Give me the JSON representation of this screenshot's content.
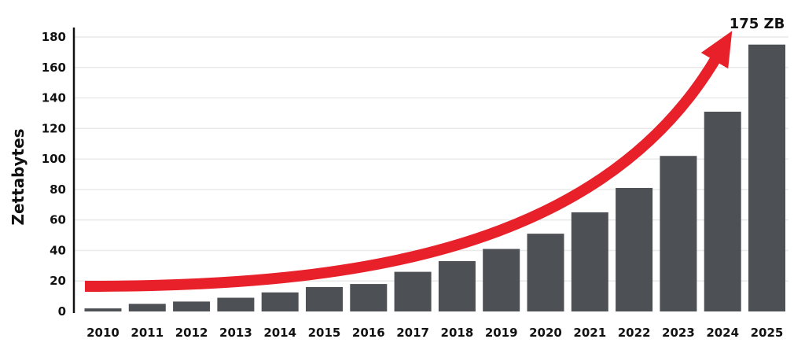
{
  "chart_data": {
    "type": "bar",
    "categories": [
      "2010",
      "2011",
      "2012",
      "2013",
      "2014",
      "2015",
      "2016",
      "2017",
      "2018",
      "2019",
      "2020",
      "2021",
      "2022",
      "2023",
      "2024",
      "2025"
    ],
    "values": [
      2,
      5,
      6.5,
      9,
      12.5,
      16,
      18,
      26,
      33,
      41,
      51,
      65,
      81,
      102,
      131,
      175
    ],
    "title": "",
    "xlabel": "",
    "ylabel": "Zettabytes",
    "ylim": [
      0,
      180
    ],
    "yticks": [
      0,
      20,
      40,
      60,
      80,
      100,
      120,
      140,
      160,
      180
    ],
    "grid": true,
    "annotation": "175 ZB",
    "trend_arrow": true,
    "colors": {
      "bar": "#4d5054",
      "arrow": "#e8202a",
      "grid": "#e9e9e9",
      "axis": "#111111"
    }
  }
}
